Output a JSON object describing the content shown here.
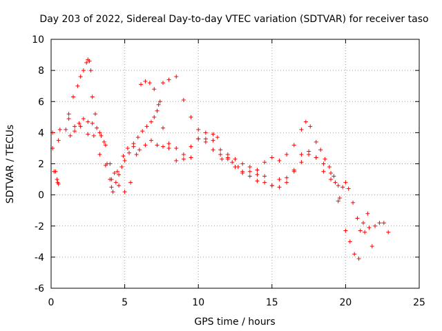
{
  "chart_data": {
    "type": "scatter",
    "title": "Day 203 of 2022, Sidereal Day-to-day VTEC variation (SDTVAR) for receiver taso",
    "xlabel": "GPS time / hours",
    "ylabel": "SDTVAR / TECUs",
    "xlim": [
      0,
      25
    ],
    "ylim": [
      -6,
      10
    ],
    "xticks": [
      0,
      5,
      10,
      15,
      20,
      25
    ],
    "yticks": [
      -6,
      -4,
      -2,
      0,
      2,
      4,
      6,
      8,
      10
    ],
    "grid": true,
    "marker": "+",
    "series": [
      {
        "name": "SDTVAR",
        "color": "#ff0000",
        "x": [
          0.2,
          0.3,
          0.4,
          0.45,
          0.5,
          0.1,
          0.5,
          1.0,
          1.2,
          1.5,
          1.8,
          2.0,
          2.2,
          2.4,
          2.5,
          2.6,
          2.7,
          2.8,
          3.0,
          3.3,
          3.6,
          3.8,
          4.0,
          4.1,
          4.2,
          4.4,
          4.6,
          4.8,
          5.0,
          5.3,
          5.6,
          5.9,
          6.2,
          6.5,
          6.8,
          7.0,
          7.2,
          7.4,
          7.6,
          8.0,
          8.5,
          9.0,
          9.5,
          10.0,
          10.5,
          11.0,
          11.3,
          11.6,
          12.0,
          12.3,
          12.7,
          13.0,
          13.5,
          14.0,
          14.5,
          15.0,
          15.5,
          16.0,
          16.5,
          17.0,
          17.3,
          17.6,
          18.0,
          18.3,
          18.6,
          18.9,
          19.2,
          19.5,
          19.8,
          20.0,
          20.2,
          20.5,
          20.8,
          21.0,
          21.3,
          21.6,
          22.0,
          22.3,
          22.6,
          22.9,
          0.1,
          0.6,
          1.2,
          1.6,
          2.0,
          2.5,
          2.9,
          3.3,
          3.7,
          4.1,
          4.5,
          4.9,
          5.2,
          5.6,
          6.0,
          6.4,
          6.8,
          7.2,
          7.6,
          8.0,
          8.5,
          9.0,
          9.5,
          10.0,
          10.5,
          11.0,
          11.5,
          12.0,
          12.5,
          13.0,
          13.5,
          14.0,
          14.5,
          15.0,
          15.5,
          16.0,
          16.5,
          17.0,
          17.5,
          18.0,
          18.5,
          19.0,
          19.3,
          19.6,
          1.3,
          1.6,
          1.9,
          2.2,
          2.5,
          2.8,
          3.1,
          3.4,
          3.7,
          4.0,
          4.3,
          4.6,
          5.0,
          5.4,
          5.8,
          6.1,
          6.4,
          6.7,
          7.0,
          7.3,
          7.6,
          8.0,
          8.5,
          9.0,
          9.5,
          10.0,
          10.5,
          11.0,
          11.5,
          12.0,
          12.5,
          13.0,
          13.5,
          14.0,
          14.5,
          15.0,
          15.5,
          16.0,
          16.5,
          17.0,
          17.5,
          18.0,
          18.5,
          19.0,
          19.5,
          20.0,
          20.3,
          20.6,
          20.9,
          21.2,
          21.5,
          21.8
        ],
        "y": [
          1.5,
          1.5,
          1.0,
          0.8,
          0.7,
          3.0,
          3.5,
          4.2,
          5.2,
          6.3,
          7.0,
          7.6,
          8.0,
          8.5,
          8.7,
          8.6,
          8.0,
          6.3,
          5.2,
          4.0,
          3.4,
          2.0,
          1.0,
          0.5,
          0.2,
          0.8,
          1.3,
          1.8,
          2.2,
          2.7,
          3.3,
          3.7,
          4.1,
          4.4,
          4.7,
          5.0,
          5.4,
          6.0,
          7.2,
          7.4,
          7.6,
          6.1,
          5.0,
          4.2,
          4.0,
          3.9,
          3.7,
          2.3,
          2.4,
          2.1,
          1.8,
          1.5,
          1.5,
          1.6,
          2.1,
          2.4,
          2.2,
          2.6,
          3.2,
          4.2,
          4.7,
          4.4,
          3.4,
          2.9,
          2.3,
          1.8,
          1.2,
          0.6,
          0.5,
          0.8,
          0.4,
          -0.5,
          -1.5,
          -2.3,
          -2.4,
          -2.1,
          -2.0,
          -1.8,
          -1.8,
          -2.4,
          4.0,
          4.2,
          4.9,
          4.4,
          4.4,
          3.9,
          3.8,
          2.6,
          1.9,
          1.0,
          1.5,
          2.5,
          3.0,
          3.1,
          2.9,
          3.2,
          3.5,
          3.2,
          3.1,
          3.0,
          2.2,
          2.3,
          2.4,
          3.6,
          3.6,
          3.5,
          2.9,
          2.3,
          1.8,
          1.4,
          1.2,
          0.9,
          0.8,
          0.6,
          1.0,
          1.1,
          1.6,
          2.1,
          2.6,
          2.4,
          2.0,
          1.4,
          0.8,
          -0.2,
          3.8,
          4.1,
          4.6,
          4.9,
          4.7,
          4.6,
          4.3,
          3.8,
          3.2,
          2.0,
          1.4,
          0.6,
          0.2,
          0.8,
          2.6,
          7.1,
          7.3,
          7.2,
          6.8,
          5.8,
          4.3,
          3.3,
          3.0,
          2.6,
          3.1,
          3.6,
          3.4,
          2.9,
          2.6,
          2.6,
          2.3,
          2.0,
          1.8,
          1.3,
          1.2,
          0.6,
          0.5,
          0.8,
          1.5,
          2.6,
          2.8,
          2.4,
          1.5,
          1.0,
          -0.4,
          -2.3,
          -3.0,
          -3.8,
          -4.1,
          -1.8,
          -1.2,
          -3.3
        ]
      }
    ]
  }
}
